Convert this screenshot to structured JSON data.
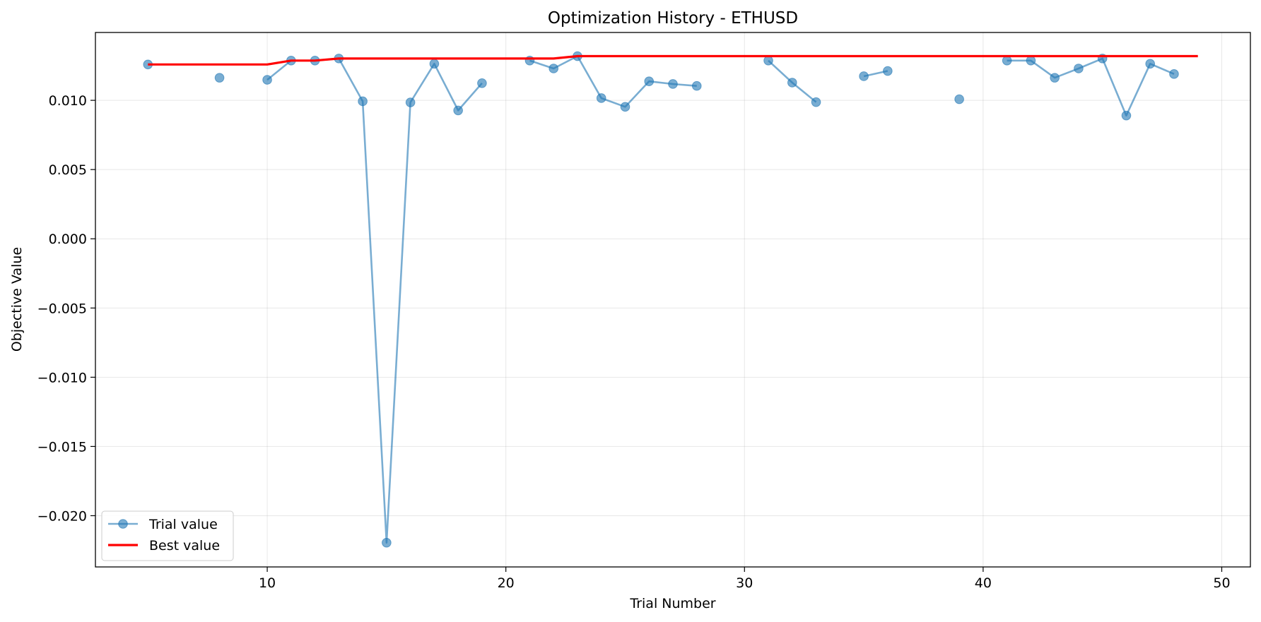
{
  "chart_data": {
    "type": "line",
    "title": "Optimization History - ETHUSD",
    "xlabel": "Trial Number",
    "ylabel": "Objective Value",
    "xlim": [
      2.8,
      51.2
    ],
    "ylim": [
      -0.0237,
      0.0149
    ],
    "xticks": [
      10,
      20,
      30,
      40,
      50
    ],
    "xtick_labels": [
      "10",
      "20",
      "30",
      "40",
      "50"
    ],
    "yticks": [
      -0.02,
      -0.015,
      -0.01,
      -0.005,
      0.0,
      0.005,
      0.01
    ],
    "ytick_labels": [
      "−0.020",
      "−0.015",
      "−0.010",
      "−0.005",
      "0.000",
      "0.005",
      "0.010"
    ],
    "grid": true,
    "legend_position": "lower-left",
    "series": [
      {
        "name": "Trial value",
        "color": "#1f77b4",
        "style": "line-with-markers",
        "segments": [
          [
            {
              "x": 5,
              "y": 0.01259
            }
          ],
          [
            {
              "x": 8,
              "y": 0.01163
            }
          ],
          [
            {
              "x": 10,
              "y": 0.01148
            },
            {
              "x": 11,
              "y": 0.01287
            },
            {
              "x": 12,
              "y": 0.01287
            },
            {
              "x": 13,
              "y": 0.01302
            },
            {
              "x": 14,
              "y": 0.00993
            },
            {
              "x": 15,
              "y": -0.02195
            },
            {
              "x": 16,
              "y": 0.00985
            },
            {
              "x": 17,
              "y": 0.01264
            },
            {
              "x": 18,
              "y": 0.00927
            },
            {
              "x": 19,
              "y": 0.01124
            }
          ],
          [
            {
              "x": 21,
              "y": 0.01287
            },
            {
              "x": 22,
              "y": 0.0123
            },
            {
              "x": 23,
              "y": 0.01319
            },
            {
              "x": 24,
              "y": 0.01016
            },
            {
              "x": 25,
              "y": 0.00953
            },
            {
              "x": 26,
              "y": 0.01137
            },
            {
              "x": 27,
              "y": 0.01118
            },
            {
              "x": 28,
              "y": 0.01104
            }
          ],
          [
            {
              "x": 31,
              "y": 0.01287
            },
            {
              "x": 32,
              "y": 0.01128
            },
            {
              "x": 33,
              "y": 0.00987
            }
          ],
          [
            {
              "x": 35,
              "y": 0.01174
            },
            {
              "x": 36,
              "y": 0.01212
            }
          ],
          [
            {
              "x": 39,
              "y": 0.01008
            }
          ],
          [
            {
              "x": 41,
              "y": 0.01287
            },
            {
              "x": 42,
              "y": 0.01287
            },
            {
              "x": 43,
              "y": 0.01163
            },
            {
              "x": 44,
              "y": 0.0123
            },
            {
              "x": 45,
              "y": 0.01302
            },
            {
              "x": 46,
              "y": 0.0089
            },
            {
              "x": 47,
              "y": 0.01264
            },
            {
              "x": 48,
              "y": 0.0119
            }
          ]
        ]
      },
      {
        "name": "Best value",
        "color": "#ff0000",
        "style": "line",
        "points": [
          {
            "x": 5,
            "y": 0.01259
          },
          {
            "x": 10,
            "y": 0.01259
          },
          {
            "x": 11,
            "y": 0.01287
          },
          {
            "x": 12,
            "y": 0.01287
          },
          {
            "x": 13,
            "y": 0.01302
          },
          {
            "x": 22,
            "y": 0.01302
          },
          {
            "x": 23,
            "y": 0.01319
          },
          {
            "x": 49,
            "y": 0.01319
          }
        ]
      }
    ]
  }
}
